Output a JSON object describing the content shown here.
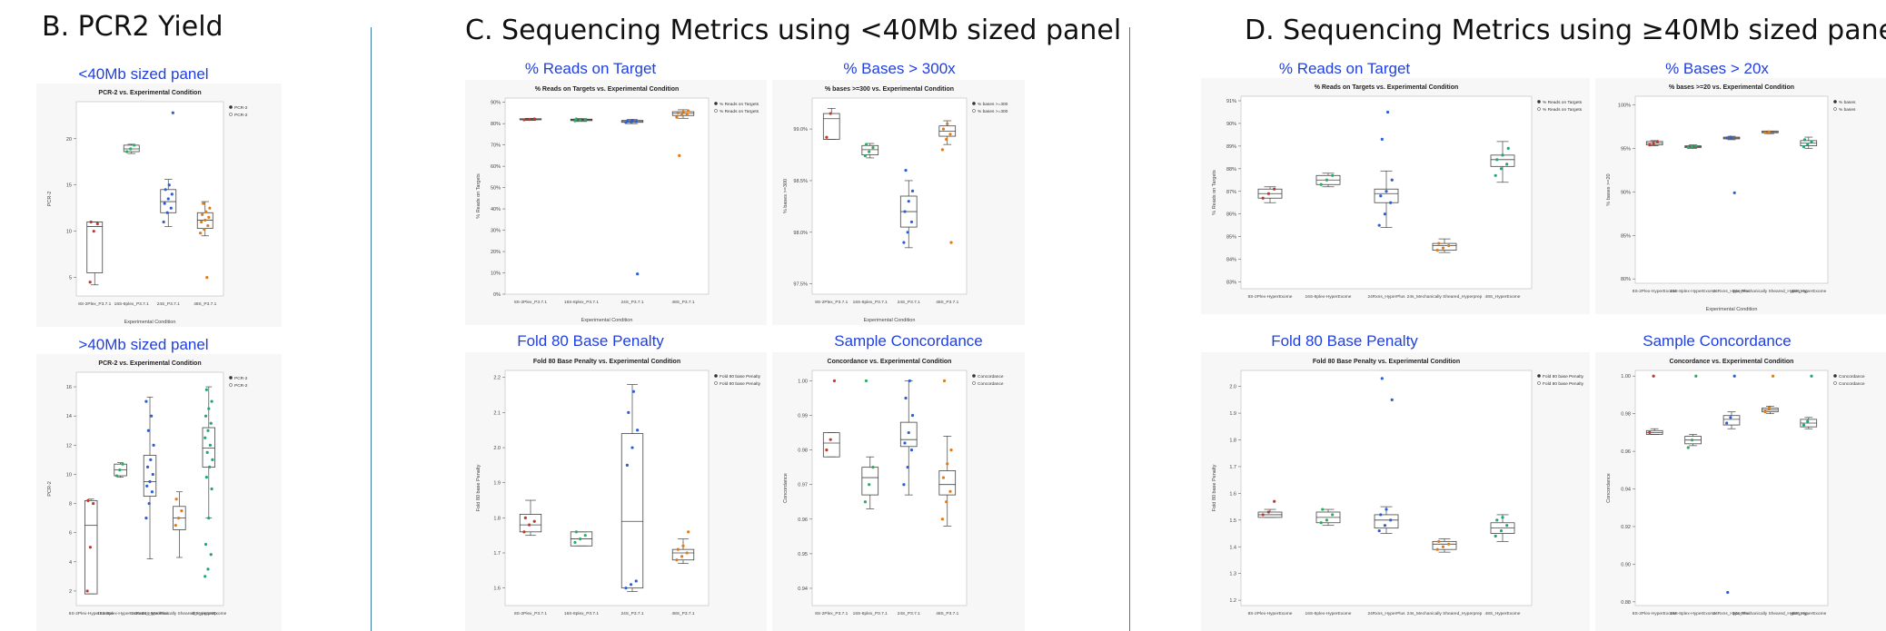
{
  "sections": {
    "b": "B. PCR2 Yield",
    "c": "C. Sequencing Metrics using <40Mb sized panel",
    "d": "D. Sequencing Metrics using ≥40Mb sized panel"
  },
  "panel_titles": {
    "b1": "<40Mb sized panel",
    "b2": ">40Mb sized panel",
    "c1": "% Reads on Target",
    "c2": "% Bases > 300x",
    "c3": "Fold 80 Base Penalty",
    "c4": "Sample Concordance",
    "d1": "% Reads on Target",
    "d2": "% Bases > 20x",
    "d3": "Fold 80 Base Penalty",
    "d4": "Sample Concordance"
  },
  "chart_data": [
    {
      "id": "b1",
      "type": "box",
      "title": "PCR-2 vs. Experimental Condition",
      "xlabel": "Experimental Condition",
      "ylabel": "PCR-2",
      "ylim": [
        3,
        24
      ],
      "yticks": [
        5,
        10,
        15,
        20
      ],
      "legend": [
        "PCR-2",
        "PCR-2"
      ],
      "categories": [
        "8S-2Plex_P3.7.1",
        "16S-8plex_P3.7.1",
        "24S_P3.7.1",
        "48S_P3.7.1"
      ],
      "colors": [
        "#c0392b",
        "#27ae60",
        "#2c5fd6",
        "#e07b1a"
      ],
      "boxes": [
        {
          "min": 4.2,
          "q1": 5.5,
          "median": 10.5,
          "q3": 11,
          "max": 11,
          "points": [
            4.5,
            10,
            10.8,
            11
          ]
        },
        {
          "min": 18.4,
          "q1": 18.6,
          "median": 18.9,
          "q3": 19.3,
          "max": 19.4,
          "points": [
            18.6,
            18.9,
            19.3
          ]
        },
        {
          "min": 10.5,
          "q1": 12,
          "median": 13.2,
          "q3": 14.5,
          "max": 15.6,
          "points": [
            11,
            12,
            12.5,
            13,
            13.5,
            14,
            14.5,
            15,
            22.8
          ]
        },
        {
          "min": 9.5,
          "q1": 10.3,
          "median": 11.2,
          "q3": 12,
          "max": 13.2,
          "points": [
            9.8,
            10.2,
            10.6,
            11,
            11.2,
            11.5,
            11.8,
            12.1,
            12.5,
            13,
            5
          ]
        }
      ]
    },
    {
      "id": "b2",
      "type": "box",
      "title": "PCR-2 vs. Experimental Condition",
      "xlabel": "",
      "ylabel": "PCR-2",
      "ylim": [
        1,
        17
      ],
      "yticks": [
        2,
        4,
        6,
        8,
        10,
        12,
        14,
        16
      ],
      "legend": [
        "PCR-2",
        "PCR-2"
      ],
      "categories": [
        "8S-2Plex-HyperExome",
        "16S-8plex-HyperExome",
        "24Rxns_HyperPlus",
        "24s_Mechanically Sheared_Hyperprep",
        "48S_HyperExome"
      ],
      "colors": [
        "#c0392b",
        "#27ae60",
        "#2c5fd6",
        "#e07b1a",
        "#1fa67a"
      ],
      "boxes": [
        {
          "min": 1.8,
          "q1": 1.8,
          "median": 6.5,
          "q3": 8.2,
          "max": 8.3,
          "points": [
            2,
            5,
            8,
            8.2
          ]
        },
        {
          "min": 9.8,
          "q1": 9.9,
          "median": 10.3,
          "q3": 10.7,
          "max": 10.8,
          "points": [
            9.9,
            10.3,
            10.7
          ]
        },
        {
          "min": 4.2,
          "q1": 8.5,
          "median": 9.5,
          "q3": 11.3,
          "max": 15.3,
          "points": [
            7,
            8,
            8.8,
            9.2,
            9.5,
            10,
            10.5,
            11,
            12,
            13,
            14,
            15
          ]
        },
        {
          "min": 4.3,
          "q1": 6.2,
          "median": 7,
          "q3": 7.8,
          "max": 8.8,
          "points": [
            6.5,
            7,
            7.5,
            8.3
          ]
        },
        {
          "min": 7,
          "q1": 10.5,
          "median": 11.8,
          "q3": 13.2,
          "max": 16,
          "points": [
            3,
            3.5,
            4.5,
            5.2,
            7,
            9,
            9.8,
            10.5,
            11,
            11.5,
            12,
            12.5,
            13,
            13.5,
            14,
            14.5,
            15,
            15.8
          ]
        }
      ]
    },
    {
      "id": "c1",
      "type": "box",
      "title": "% Reads on Targets vs. Experimental Condition",
      "xlabel": "Experimental Condition",
      "ylabel": "% Reads on Targets",
      "ylim": [
        0,
        92
      ],
      "yticks": [
        0,
        10,
        20,
        30,
        40,
        50,
        60,
        70,
        80,
        90
      ],
      "ytick_suffix": "%",
      "legend": [
        "% Reads on Targets",
        "% Reads on Targets"
      ],
      "categories": [
        "8S-2Plex_P3.7.1",
        "16S-8plex_P3.7.1",
        "24S_P3.7.1",
        "48S_P3.7.1"
      ],
      "colors": [
        "#c0392b",
        "#27ae60",
        "#2c5fd6",
        "#e07b1a"
      ],
      "boxes": [
        {
          "min": 81.5,
          "q1": 81.8,
          "median": 82,
          "q3": 82.3,
          "max": 82.5,
          "points": [
            81.8,
            82,
            82.2
          ]
        },
        {
          "min": 81,
          "q1": 81.4,
          "median": 81.8,
          "q3": 82.1,
          "max": 82.4,
          "points": [
            81.3,
            81.6,
            81.9,
            82.2
          ]
        },
        {
          "min": 80,
          "q1": 80.6,
          "median": 81,
          "q3": 81.5,
          "max": 82,
          "points": [
            80.5,
            80.8,
            81,
            81.2,
            81.5,
            9.5
          ]
        },
        {
          "min": 82.5,
          "q1": 83.8,
          "median": 84.8,
          "q3": 85.6,
          "max": 86.5,
          "points": [
            83,
            84,
            84.5,
            85,
            85.5,
            86,
            65
          ]
        }
      ]
    },
    {
      "id": "c2",
      "type": "box",
      "title": "% bases >=300 vs. Experimental Condition",
      "xlabel": "Experimental Condition",
      "ylabel": "% bases >=300",
      "ylim": [
        97.4,
        99.3
      ],
      "yticks": [
        97.5,
        98.0,
        98.5,
        99.0
      ],
      "ytick_suffix": "%",
      "legend": [
        "% bases >=300",
        "% bases >=300"
      ],
      "categories": [
        "8S-2Plex_P3.7.1",
        "16S-8plex_P3.7.1",
        "24S_P3.7.1",
        "48S_P3.7.1"
      ],
      "colors": [
        "#c0392b",
        "#27ae60",
        "#2c5fd6",
        "#e07b1a"
      ],
      "boxes": [
        {
          "min": 98.9,
          "q1": 98.9,
          "median": 99.1,
          "q3": 99.15,
          "max": 99.2,
          "points": [
            98.92,
            99.15
          ]
        },
        {
          "min": 98.72,
          "q1": 98.75,
          "median": 98.8,
          "q3": 98.84,
          "max": 98.86,
          "points": [
            98.74,
            98.78,
            98.82,
            98.85
          ]
        },
        {
          "min": 97.85,
          "q1": 98.05,
          "median": 98.2,
          "q3": 98.35,
          "max": 98.5,
          "points": [
            97.9,
            98.0,
            98.1,
            98.2,
            98.3,
            98.4,
            98.6
          ]
        },
        {
          "min": 98.85,
          "q1": 98.93,
          "median": 98.98,
          "q3": 99.03,
          "max": 99.08,
          "points": [
            98.8,
            98.9,
            98.95,
            99.0,
            99.05,
            97.9
          ]
        }
      ]
    },
    {
      "id": "c3",
      "type": "box",
      "title": "Fold 80 Base Penalty vs. Experimental Condition",
      "xlabel": "",
      "ylabel": "Fold 80 base Penalty",
      "ylim": [
        1.55,
        2.22
      ],
      "yticks": [
        1.6,
        1.7,
        1.8,
        1.9,
        2.0,
        2.1,
        2.2
      ],
      "legend": [
        "Fold 80 base Penalty",
        "Fold 80 base Penalty"
      ],
      "categories": [
        "8S-2Plex_P3.7.1",
        "16S-8plex_P3.7.1",
        "24S_P3.7.1",
        "48S_P3.7.1"
      ],
      "colors": [
        "#c0392b",
        "#27ae60",
        "#2c5fd6",
        "#e07b1a"
      ],
      "boxes": [
        {
          "min": 1.75,
          "q1": 1.76,
          "median": 1.78,
          "q3": 1.81,
          "max": 1.85,
          "points": [
            1.76,
            1.78,
            1.79,
            1.8
          ]
        },
        {
          "min": 1.72,
          "q1": 1.72,
          "median": 1.74,
          "q3": 1.76,
          "max": 1.76,
          "points": [
            1.73,
            1.74,
            1.75,
            1.76
          ]
        },
        {
          "min": 1.59,
          "q1": 1.6,
          "median": 1.79,
          "q3": 2.04,
          "max": 2.18,
          "points": [
            1.6,
            1.61,
            1.62,
            1.95,
            2.0,
            2.05,
            2.1,
            2.16
          ]
        },
        {
          "min": 1.67,
          "q1": 1.68,
          "median": 1.7,
          "q3": 1.71,
          "max": 1.74,
          "points": [
            1.68,
            1.69,
            1.7,
            1.71,
            1.72,
            1.76
          ]
        }
      ]
    },
    {
      "id": "c4",
      "type": "box",
      "title": "Concordance vs. Experimental Condition",
      "xlabel": "",
      "ylabel": "Concordance",
      "ylim": [
        0.935,
        1.003
      ],
      "yticks": [
        0.94,
        0.95,
        0.96,
        0.97,
        0.98,
        0.99,
        1.0
      ],
      "legend": [
        "Concordance",
        "Concordance"
      ],
      "categories": [
        "8S-2Plex_P3.7.1",
        "16S-8plex_P3.7.1",
        "24S_P3.7.1",
        "48S_P3.7.1"
      ],
      "colors": [
        "#c0392b",
        "#27ae60",
        "#2c5fd6",
        "#e07b1a"
      ],
      "boxes": [
        {
          "min": 0.978,
          "q1": 0.978,
          "median": 0.982,
          "q3": 0.985,
          "max": 0.985,
          "points": [
            0.98,
            0.983,
            1.0
          ]
        },
        {
          "min": 0.963,
          "q1": 0.967,
          "median": 0.972,
          "q3": 0.975,
          "max": 0.978,
          "points": [
            0.965,
            0.97,
            0.975,
            1.0
          ]
        },
        {
          "min": 0.967,
          "q1": 0.981,
          "median": 0.983,
          "q3": 0.988,
          "max": 1.0,
          "points": [
            0.97,
            0.975,
            0.98,
            0.982,
            0.985,
            0.99,
            0.995,
            1.0
          ]
        },
        {
          "min": 0.958,
          "q1": 0.967,
          "median": 0.97,
          "q3": 0.974,
          "max": 0.984,
          "points": [
            0.96,
            0.965,
            0.968,
            0.972,
            0.976,
            0.98,
            1.0
          ]
        }
      ]
    },
    {
      "id": "d1",
      "type": "box",
      "title": "% Reads on Targets vs. Experimental Condition",
      "xlabel": "",
      "ylabel": "% Reads on Targets",
      "ylim": [
        82.7,
        91.2
      ],
      "yticks": [
        83,
        84,
        85,
        86,
        87,
        88,
        89,
        90,
        91
      ],
      "ytick_suffix": "%",
      "legend": [
        "% Reads on Targets",
        "% Reads on Targets"
      ],
      "categories": [
        "8S-2Plex-HyperExome",
        "16S-8plex-HyperExome",
        "24Rxns_HyperPlus",
        "24s_Mechanically Sheared_Hyperprep",
        "48S_HyperExome"
      ],
      "colors": [
        "#c0392b",
        "#27ae60",
        "#2c5fd6",
        "#e07b1a",
        "#1fa67a"
      ],
      "boxes": [
        {
          "min": 86.5,
          "q1": 86.7,
          "median": 86.9,
          "q3": 87.1,
          "max": 87.2,
          "points": [
            86.7,
            86.9,
            87.1
          ]
        },
        {
          "min": 87.2,
          "q1": 87.3,
          "median": 87.5,
          "q3": 87.7,
          "max": 87.8,
          "points": [
            87.3,
            87.5,
            87.7
          ]
        },
        {
          "min": 85.4,
          "q1": 86.5,
          "median": 86.9,
          "q3": 87.1,
          "max": 87.9,
          "points": [
            85.5,
            86,
            86.5,
            86.8,
            87,
            87.5,
            89.3,
            90.5
          ]
        },
        {
          "min": 84.3,
          "q1": 84.4,
          "median": 84.6,
          "q3": 84.7,
          "max": 84.9,
          "points": [
            84.4,
            84.5,
            84.6,
            84.7
          ]
        },
        {
          "min": 87.4,
          "q1": 88.1,
          "median": 88.4,
          "q3": 88.6,
          "max": 89.2,
          "points": [
            87.7,
            88,
            88.2,
            88.4,
            88.6,
            88.9
          ]
        }
      ]
    },
    {
      "id": "d2",
      "type": "box",
      "title": "% bases >=20 vs. Experimental Condition",
      "xlabel": "Experimental Condition",
      "ylabel": "% bases >=20",
      "ylim": [
        79.5,
        101
      ],
      "yticks": [
        80,
        85,
        90,
        95,
        100
      ],
      "ytick_suffix": "%",
      "legend": [
        "% bases",
        "% bases"
      ],
      "categories": [
        "8S-2Plex-HyperExome",
        "16S-8plex-HyperExome",
        "24Rxns_HyperPlus",
        "24s_Mechanically Sheared_Hyperprep",
        "48S_HyperExome"
      ],
      "colors": [
        "#c0392b",
        "#27ae60",
        "#2c5fd6",
        "#e07b1a",
        "#1fa67a"
      ],
      "boxes": [
        {
          "min": 95.3,
          "q1": 95.4,
          "median": 95.6,
          "q3": 95.8,
          "max": 95.9,
          "points": [
            95.4,
            95.6,
            95.8
          ]
        },
        {
          "min": 95,
          "q1": 95.1,
          "median": 95.2,
          "q3": 95.3,
          "max": 95.4,
          "points": [
            95.1,
            95.2,
            95.3
          ]
        },
        {
          "min": 96,
          "q1": 96.1,
          "median": 96.2,
          "q3": 96.3,
          "max": 96.4,
          "points": [
            96.2,
            96.3,
            89.9
          ]
        },
        {
          "min": 96.7,
          "q1": 96.8,
          "median": 96.9,
          "q3": 97,
          "max": 97,
          "points": [
            96.8,
            96.9
          ]
        },
        {
          "min": 95,
          "q1": 95.3,
          "median": 95.6,
          "q3": 95.9,
          "max": 96.3,
          "points": [
            95.2,
            95.5,
            95.8,
            96
          ]
        }
      ]
    },
    {
      "id": "d3",
      "type": "box",
      "title": "Fold 80 Base Penalty vs. Experimental Condition",
      "xlabel": "",
      "ylabel": "Fold 80 base Penalty",
      "ylim": [
        1.18,
        2.06
      ],
      "yticks": [
        1.2,
        1.3,
        1.4,
        1.5,
        1.6,
        1.7,
        1.8,
        1.9,
        2.0
      ],
      "legend": [
        "Fold 80 base Penalty",
        "Fold 80 base Penalty"
      ],
      "categories": [
        "8S-2Plex-HyperExome",
        "16S-8plex-HyperExome",
        "24Rxns_HyperPlus",
        "24s_Mechanically Sheared_Hyperprep",
        "48S_HyperExome"
      ],
      "colors": [
        "#c0392b",
        "#27ae60",
        "#2c5fd6",
        "#e07b1a",
        "#1fa67a"
      ],
      "boxes": [
        {
          "min": 1.51,
          "q1": 1.51,
          "median": 1.52,
          "q3": 1.53,
          "max": 1.54,
          "points": [
            1.52,
            1.53,
            1.57
          ]
        },
        {
          "min": 1.48,
          "q1": 1.49,
          "median": 1.51,
          "q3": 1.53,
          "max": 1.54,
          "points": [
            1.49,
            1.5,
            1.52,
            1.54
          ]
        },
        {
          "min": 1.45,
          "q1": 1.47,
          "median": 1.5,
          "q3": 1.52,
          "max": 1.55,
          "points": [
            1.46,
            1.48,
            1.5,
            1.52,
            1.54,
            1.95,
            2.03
          ]
        },
        {
          "min": 1.38,
          "q1": 1.39,
          "median": 1.41,
          "q3": 1.42,
          "max": 1.43,
          "points": [
            1.39,
            1.4,
            1.41,
            1.42
          ]
        },
        {
          "min": 1.42,
          "q1": 1.45,
          "median": 1.47,
          "q3": 1.49,
          "max": 1.52,
          "points": [
            1.44,
            1.46,
            1.48,
            1.5,
            1.51
          ]
        }
      ]
    },
    {
      "id": "d4",
      "type": "box",
      "title": "Concordance vs. Experimental Condition",
      "xlabel": "",
      "ylabel": "Concordance",
      "ylim": [
        0.878,
        1.003
      ],
      "yticks": [
        0.88,
        0.9,
        0.92,
        0.94,
        0.96,
        0.98,
        1.0
      ],
      "legend": [
        "Concordance",
        "Concordance"
      ],
      "categories": [
        "8S-2Plex-HyperExome",
        "16S-8plex-HyperExome",
        "24Rxns_HyperPlus",
        "24s_Mechanically Sheared_Hyperprep",
        "48S_HyperExome"
      ],
      "colors": [
        "#c0392b",
        "#27ae60",
        "#2c5fd6",
        "#e07b1a",
        "#1fa67a"
      ],
      "boxes": [
        {
          "min": 0.969,
          "q1": 0.969,
          "median": 0.97,
          "q3": 0.971,
          "max": 0.972,
          "points": [
            0.97,
            1.0
          ]
        },
        {
          "min": 0.963,
          "q1": 0.964,
          "median": 0.966,
          "q3": 0.968,
          "max": 0.969,
          "points": [
            0.962,
            0.966,
            1.0
          ]
        },
        {
          "min": 0.972,
          "q1": 0.974,
          "median": 0.977,
          "q3": 0.979,
          "max": 0.981,
          "points": [
            0.975,
            0.978,
            1.0,
            0.885
          ]
        },
        {
          "min": 0.98,
          "q1": 0.981,
          "median": 0.982,
          "q3": 0.983,
          "max": 0.984,
          "points": [
            0.981,
            0.983,
            1.0
          ]
        },
        {
          "min": 0.972,
          "q1": 0.973,
          "median": 0.975,
          "q3": 0.977,
          "max": 0.978,
          "points": [
            0.974,
            0.976,
            1.0
          ]
        }
      ]
    }
  ]
}
